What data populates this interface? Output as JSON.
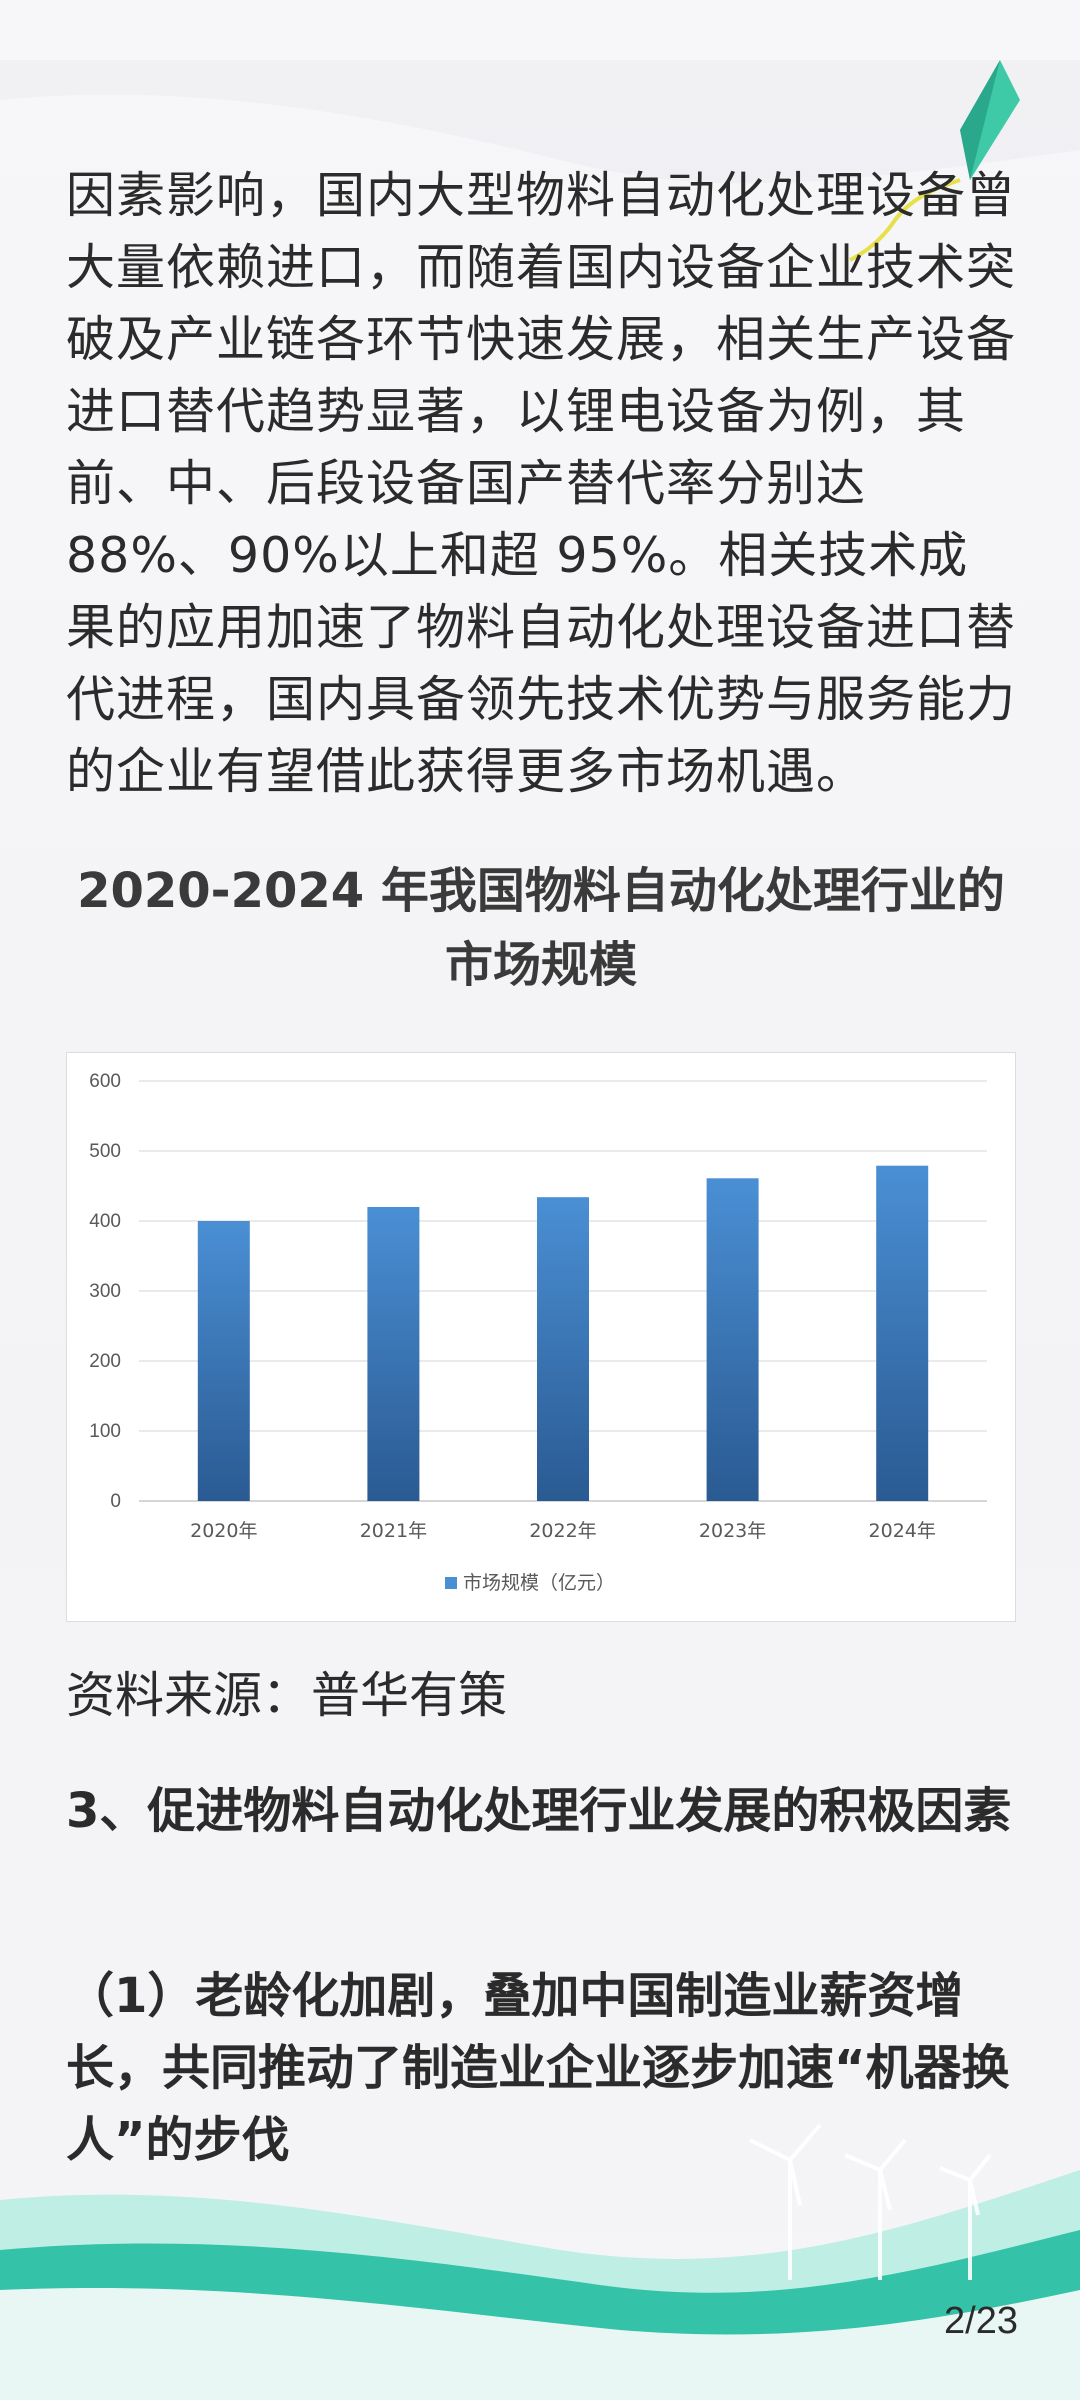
{
  "article": {
    "paragraph": "因素影响，国内大型物料自动化处理设备曾大量依赖进口，而随着国内设备企业技术突破及产业链各环节快速发展，相关生产设备进口替代趋势显著，以锂电设备为例，其前、中、后段设备国产替代率分别达 88%、90%以上和超 95%。相关技术成果的应用加速了物料自动化处理设备进口替代进程，国内具备领先技术优势与服务能力的企业有望借此获得更多市场机遇。",
    "chart_title": "2020-2024 年我国物料自动化处理行业的市场规模",
    "source": "资料来源：普华有策",
    "section_title": "3、促进物料自动化处理行业发展的积极因素",
    "sub_title": "（1）老龄化加剧，叠加中国制造业薪资增长，共同推动了制造业企业逐步加速“机器换人”的步伐"
  },
  "chart_data": {
    "type": "bar",
    "categories": [
      "2020年",
      "2021年",
      "2022年",
      "2023年",
      "2024年"
    ],
    "series": [
      {
        "name": "市场规模（亿元）",
        "values": [
          400,
          420,
          434,
          461,
          479
        ]
      }
    ],
    "ylim": [
      0,
      600
    ],
    "yticks": [
      0,
      100,
      200,
      300,
      400,
      500,
      600
    ],
    "grid": true,
    "legend": "bottom",
    "bar_color_top": "#4a8fd4",
    "bar_color_bottom": "#2a5a92"
  },
  "footer": {
    "page": "2/23"
  },
  "colors": {
    "accent": "#2fbfae",
    "kite": "#3ec9a7"
  }
}
